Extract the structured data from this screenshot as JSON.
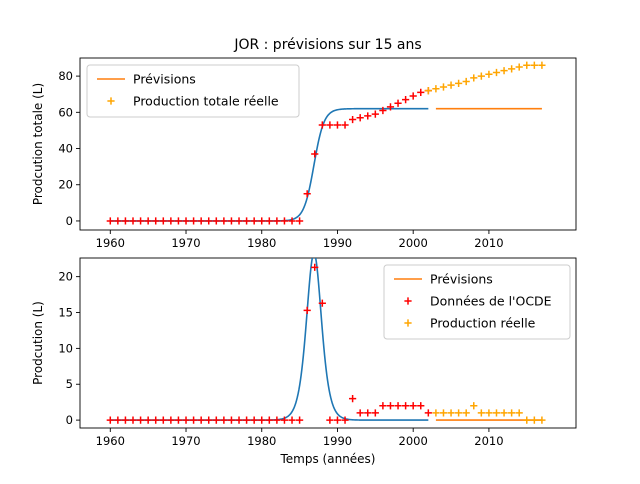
{
  "chart_data": [
    {
      "type": "line",
      "title": "JOR : prévisions sur 15 ans",
      "xlabel": "",
      "ylabel": "Prodcution totale (L)",
      "xlim": [
        1956,
        2021.5
      ],
      "ylim": [
        -5,
        90
      ],
      "xticks": [
        1960,
        1970,
        1980,
        1990,
        2000,
        2010
      ],
      "yticks": [
        0,
        20,
        40,
        60,
        80
      ],
      "legend_position": "upper left",
      "legend": [
        "Prévisions",
        "Production totale réelle"
      ],
      "series": [
        {
          "name": "Prévisions",
          "kind": "line",
          "color": "#ff7f0e",
          "x": [
            2003,
            2017
          ],
          "y": [
            62,
            62
          ]
        },
        {
          "name": "",
          "kind": "line",
          "color": "#1f77b4",
          "model": {
            "type": "logistic",
            "L": 62,
            "k": 1.5,
            "x0": 1986.9
          },
          "x_range": [
            1960,
            2002
          ]
        },
        {
          "name": "",
          "kind": "scatter",
          "color": "#ff0000",
          "x": [
            1960,
            1961,
            1962,
            1963,
            1964,
            1965,
            1966,
            1967,
            1968,
            1969,
            1970,
            1971,
            1972,
            1973,
            1974,
            1975,
            1976,
            1977,
            1978,
            1979,
            1980,
            1981,
            1982,
            1983,
            1984,
            1985,
            1986,
            1987,
            1988,
            1989,
            1990,
            1991,
            1992,
            1993,
            1994,
            1995,
            1996,
            1997,
            1998,
            1999,
            2000,
            2001,
            2002
          ],
          "y": [
            0,
            0,
            0,
            0,
            0,
            0,
            0,
            0,
            0,
            0,
            0,
            0,
            0,
            0,
            0,
            0,
            0,
            0,
            0,
            0,
            0,
            0,
            0,
            0,
            0,
            0,
            15,
            37,
            53,
            53,
            53,
            53,
            56,
            57,
            58,
            59,
            61,
            63,
            65,
            67,
            69,
            71,
            72
          ]
        },
        {
          "name": "Production totale réelle",
          "kind": "scatter",
          "color": "#ffa500",
          "x": [
            2002,
            2003,
            2004,
            2005,
            2006,
            2007,
            2008,
            2009,
            2010,
            2011,
            2012,
            2013,
            2014,
            2015,
            2016,
            2017
          ],
          "y": [
            72,
            73,
            74,
            75,
            76,
            77,
            79,
            80,
            81,
            82,
            83,
            84,
            85,
            86,
            86,
            86
          ]
        }
      ]
    },
    {
      "type": "line",
      "title": "",
      "xlabel": "Temps (années)",
      "ylabel": "Prodcution (L)",
      "xlim": [
        1956,
        2021.5
      ],
      "ylim": [
        -1.1,
        22.6
      ],
      "xticks": [
        1960,
        1970,
        1980,
        1990,
        2000,
        2010
      ],
      "yticks": [
        0,
        5,
        10,
        15,
        20
      ],
      "legend_position": "upper right",
      "legend": [
        "Prévisions",
        "Données de l'OCDE",
        "Production réelle"
      ],
      "series": [
        {
          "name": "Prévisions",
          "kind": "line",
          "color": "#ff7f0e",
          "x": [
            2003,
            2017
          ],
          "y": [
            0,
            0
          ]
        },
        {
          "name": "",
          "kind": "line",
          "color": "#1f77b4",
          "model": {
            "type": "logistic_derivative",
            "L": 62,
            "k": 1.5,
            "x0": 1986.9
          },
          "x_range": [
            1960,
            2002
          ]
        },
        {
          "name": "Données de l'OCDE",
          "kind": "scatter",
          "color": "#ff0000",
          "x": [
            1960,
            1961,
            1962,
            1963,
            1964,
            1965,
            1966,
            1967,
            1968,
            1969,
            1970,
            1971,
            1972,
            1973,
            1974,
            1975,
            1976,
            1977,
            1978,
            1979,
            1980,
            1981,
            1982,
            1983,
            1984,
            1985,
            1986,
            1987,
            1988,
            1989,
            1990,
            1991,
            1992,
            1993,
            1994,
            1995,
            1996,
            1997,
            1998,
            1999,
            2000,
            2001,
            2002
          ],
          "y": [
            0,
            0,
            0,
            0,
            0,
            0,
            0,
            0,
            0,
            0,
            0,
            0,
            0,
            0,
            0,
            0,
            0,
            0,
            0,
            0,
            0,
            0,
            0,
            0,
            0,
            0,
            15.3,
            21.3,
            16.3,
            0,
            0,
            0,
            3,
            1,
            1,
            1,
            2,
            2,
            2,
            2,
            2,
            2,
            1
          ]
        },
        {
          "name": "Production réelle",
          "kind": "scatter",
          "color": "#ffa500",
          "x": [
            2003,
            2004,
            2005,
            2006,
            2007,
            2008,
            2009,
            2010,
            2011,
            2012,
            2013,
            2014,
            2015,
            2016,
            2017
          ],
          "y": [
            1,
            1,
            1,
            1,
            1,
            2,
            1,
            1,
            1,
            1,
            1,
            1,
            0,
            0,
            0
          ]
        }
      ]
    }
  ]
}
